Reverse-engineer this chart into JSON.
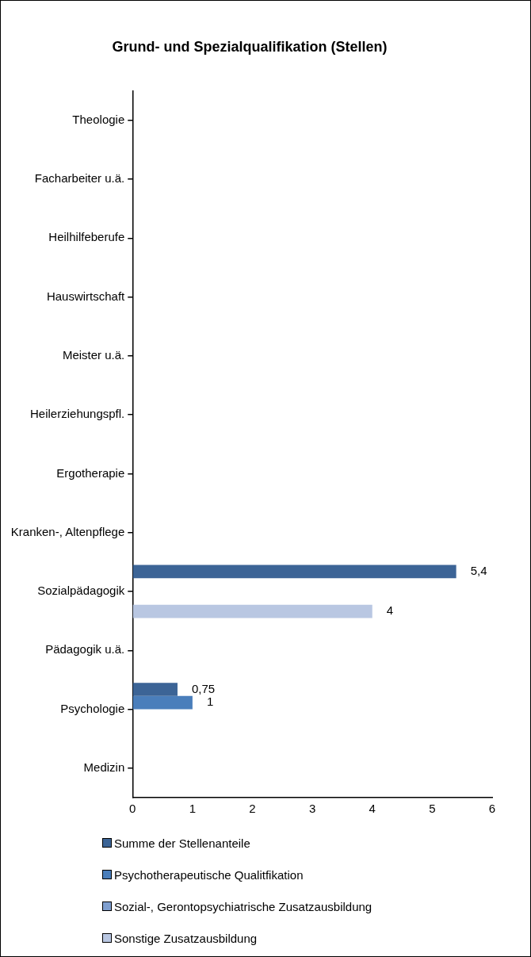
{
  "chart_data": {
    "type": "bar",
    "orientation": "horizontal",
    "title": "Grund- und Spezialqualifikation (Stellen)",
    "categories": [
      "Theologie",
      "Facharbeiter u.ä.",
      "Heilhilfeberufe",
      "Hauswirtschaft",
      "Meister u.ä.",
      "Heilerziehungspfl.",
      "Ergotherapie",
      "Kranken-, Altenpflege",
      "Sozialpädagogik",
      "Pädagogik u.ä.",
      "Psychologie",
      "Medizin"
    ],
    "series": [
      {
        "name": "Summe der Stellenanteile",
        "color": "#3c6496",
        "values": [
          null,
          null,
          null,
          null,
          null,
          null,
          null,
          null,
          5.4,
          null,
          0.75,
          null
        ],
        "value_labels": [
          null,
          null,
          null,
          null,
          null,
          null,
          null,
          null,
          "5,4",
          null,
          "0,75",
          null
        ]
      },
      {
        "name": "Psychotherapeutische Qualitfikation",
        "color": "#4a7ebb",
        "values": [
          null,
          null,
          null,
          null,
          null,
          null,
          null,
          null,
          null,
          null,
          1,
          null
        ],
        "value_labels": [
          null,
          null,
          null,
          null,
          null,
          null,
          null,
          null,
          null,
          null,
          "1",
          null
        ]
      },
      {
        "name": "Sozial-, Gerontopsychiatrische Zusatzausbildung",
        "color": "#7f9fcf",
        "values": [
          null,
          null,
          null,
          null,
          null,
          null,
          null,
          null,
          null,
          null,
          null,
          null
        ]
      },
      {
        "name": "Sonstige Zusatzausbildung",
        "color": "#b9c7e2",
        "values": [
          null,
          null,
          null,
          null,
          null,
          null,
          null,
          null,
          4,
          null,
          null,
          null
        ],
        "value_labels": [
          null,
          null,
          null,
          null,
          null,
          null,
          null,
          null,
          "4",
          null,
          null,
          null
        ]
      }
    ],
    "xlim": [
      0,
      6
    ],
    "xticks": [
      0,
      1,
      2,
      3,
      4,
      5,
      6
    ],
    "grid": false,
    "legend": "bottom"
  }
}
